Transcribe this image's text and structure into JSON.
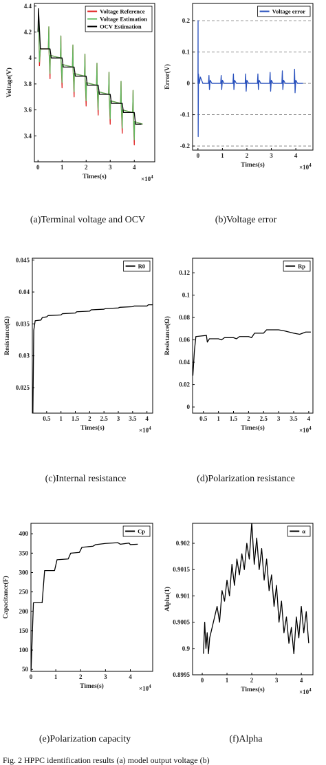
{
  "chart_data": [
    {
      "type": "line",
      "caption": "(a)Terminal voltage and OCV",
      "ylabel": "Voltage(V)",
      "xlabel": "Times(s)",
      "x_scale_base": "×10",
      "x_scale_exp": "4",
      "xlim": [
        -0.15,
        4.85
      ],
      "xticks": [
        0,
        1,
        2,
        3,
        4
      ],
      "ylim": [
        3.2,
        4.42
      ],
      "yticks": [
        3.4,
        3.6,
        3.8,
        4,
        4.2,
        4.4
      ],
      "grid": false,
      "legend": "upper right",
      "series": [
        {
          "name": "Voltage Reference",
          "color": "#e02020",
          "x": [
            0,
            0.03,
            0.06,
            0.1,
            0.43,
            0.45,
            0.46,
            0.5,
            0.51,
            0.93,
            0.95,
            0.96,
            1.0,
            1.01,
            1.43,
            1.45,
            1.46,
            1.5,
            1.51,
            1.93,
            1.95,
            1.96,
            2.0,
            2.01,
            2.43,
            2.45,
            2.46,
            2.5,
            2.51,
            2.93,
            2.95,
            2.96,
            3.0,
            3.01,
            3.43,
            3.45,
            3.46,
            3.5,
            3.51,
            3.93,
            3.95,
            3.96,
            4.0,
            4.01,
            4.35
          ],
          "values": [
            4.2,
            4.28,
            3.94,
            4.07,
            4.07,
            4.24,
            4.05,
            3.84,
            4.02,
            4.0,
            4.17,
            3.98,
            3.77,
            3.95,
            3.93,
            4.1,
            3.91,
            3.7,
            3.88,
            3.86,
            4.03,
            3.84,
            3.63,
            3.81,
            3.79,
            3.96,
            3.77,
            3.56,
            3.74,
            3.72,
            3.89,
            3.7,
            3.49,
            3.67,
            3.65,
            3.82,
            3.63,
            3.42,
            3.6,
            3.58,
            3.75,
            3.56,
            3.33,
            3.51,
            3.49
          ]
        },
        {
          "name": "Voltage Estimation",
          "color": "#5cb85c",
          "x": [
            0,
            0.03,
            0.06,
            0.1,
            0.43,
            0.45,
            0.46,
            0.5,
            0.51,
            0.93,
            0.95,
            0.96,
            1.0,
            1.01,
            1.43,
            1.45,
            1.46,
            1.5,
            1.51,
            1.93,
            1.95,
            1.96,
            2.0,
            2.01,
            2.43,
            2.45,
            2.46,
            2.5,
            2.51,
            2.93,
            2.95,
            2.96,
            3.0,
            3.01,
            3.43,
            3.45,
            3.46,
            3.5,
            3.51,
            3.93,
            3.95,
            3.96,
            4.0,
            4.01,
            4.35
          ],
          "values": [
            4.2,
            4.28,
            3.97,
            4.07,
            4.07,
            4.24,
            4.05,
            3.88,
            4.02,
            4.0,
            4.17,
            3.98,
            3.81,
            3.95,
            3.93,
            4.1,
            3.91,
            3.74,
            3.88,
            3.86,
            4.03,
            3.84,
            3.67,
            3.81,
            3.79,
            3.96,
            3.77,
            3.6,
            3.74,
            3.72,
            3.89,
            3.7,
            3.53,
            3.67,
            3.65,
            3.82,
            3.63,
            3.46,
            3.6,
            3.58,
            3.75,
            3.56,
            3.37,
            3.51,
            3.49
          ]
        },
        {
          "name": "OCV Estimation",
          "color": "#000000",
          "x": [
            0,
            0.02,
            0.1,
            0.5,
            0.55,
            1.0,
            1.05,
            1.5,
            1.55,
            2.0,
            2.05,
            2.5,
            2.55,
            3.0,
            3.05,
            3.5,
            3.55,
            4.0,
            4.05,
            4.3
          ],
          "values": [
            4.2,
            4.38,
            4.07,
            4.07,
            4.0,
            4.0,
            3.93,
            3.93,
            3.86,
            3.86,
            3.79,
            3.79,
            3.72,
            3.72,
            3.65,
            3.65,
            3.58,
            3.58,
            3.49,
            3.49
          ]
        }
      ]
    },
    {
      "type": "line",
      "caption": "(b)Voltage error",
      "ylabel": "Error(V)",
      "xlabel": "Times(s)",
      "x_scale_base": "×10",
      "x_scale_exp": "4",
      "xlim": [
        -0.22,
        4.7
      ],
      "xticks": [
        0,
        1,
        2,
        3,
        4
      ],
      "ylim": [
        -0.213,
        0.255
      ],
      "yticks": [
        -0.2,
        -0.1,
        0,
        0.1,
        0.2
      ],
      "grid": true,
      "legend": "upper right",
      "series": [
        {
          "name": "Voltage error",
          "color": "#2a52be",
          "x": [
            0,
            0.005,
            0.01,
            0.02,
            0.06,
            0.1,
            0.2,
            0.43,
            0.45,
            0.47,
            0.5,
            0.57,
            0.93,
            0.95,
            0.97,
            1.0,
            1.07,
            1.43,
            1.45,
            1.47,
            1.5,
            1.57,
            1.93,
            1.95,
            1.97,
            2.0,
            2.07,
            2.43,
            2.45,
            2.47,
            2.5,
            2.57,
            2.93,
            2.95,
            2.97,
            3.0,
            3.07,
            3.43,
            3.45,
            3.47,
            3.5,
            3.57,
            3.93,
            3.95,
            3.97,
            4.0,
            4.07,
            4.3
          ],
          "values": [
            0,
            0.2,
            -0.17,
            0.03,
            0,
            0.02,
            0,
            0,
            0.025,
            -0.02,
            0.01,
            0,
            0,
            0.025,
            -0.02,
            0.01,
            0,
            0,
            0.03,
            -0.02,
            0.01,
            0,
            0,
            0.03,
            -0.025,
            0.01,
            0,
            0,
            0.03,
            -0.02,
            0.01,
            0,
            0,
            0.035,
            -0.025,
            0.01,
            0,
            0,
            0.04,
            -0.02,
            0.01,
            0,
            0,
            0.045,
            -0.03,
            0.01,
            0,
            0
          ]
        }
      ]
    },
    {
      "type": "line",
      "caption": "(c)Internal resistance",
      "ylabel": "Resistance(Ω)",
      "xlabel": "Times(s)",
      "x_scale_base": "×10",
      "x_scale_exp": "4",
      "xlim": [
        0,
        4.2
      ],
      "xticks": [
        0.5,
        1,
        1.5,
        2,
        2.5,
        3,
        3.5,
        4
      ],
      "ylim": [
        0.021,
        0.0453
      ],
      "yticks": [
        0.025,
        0.03,
        0.035,
        0.04,
        0.045
      ],
      "grid": false,
      "legend": "upper right",
      "series": [
        {
          "name": "R0",
          "color": "#000000",
          "x": [
            0.02,
            0.05,
            0.1,
            0.3,
            0.35,
            0.5,
            0.55,
            1.0,
            1.05,
            1.5,
            1.55,
            2.0,
            2.05,
            2.5,
            2.55,
            3.0,
            3.05,
            3.5,
            3.55,
            4.0,
            4.05,
            4.2
          ],
          "values": [
            0.021,
            0.034,
            0.0355,
            0.0356,
            0.036,
            0.0361,
            0.0363,
            0.0364,
            0.0366,
            0.0367,
            0.0369,
            0.037,
            0.0372,
            0.0373,
            0.0374,
            0.0375,
            0.0376,
            0.0377,
            0.0378,
            0.0378,
            0.038,
            0.038
          ]
        }
      ]
    },
    {
      "type": "line",
      "caption": "(d)Polarization resistance",
      "ylabel": "Resistance(Ω)",
      "xlabel": "Times(s)",
      "x_scale_base": "×10",
      "x_scale_exp": "4",
      "xlim": [
        0.14,
        4.14
      ],
      "xticks": [
        0.5,
        1,
        1.5,
        2,
        2.5,
        3,
        3.5,
        4
      ],
      "ylim": [
        -0.0055,
        0.133
      ],
      "yticks": [
        0,
        0.02,
        0.04,
        0.06,
        0.08,
        0.1,
        0.12
      ],
      "grid": false,
      "legend": "upper right",
      "series": [
        {
          "name": "Rp",
          "color": "#000000",
          "x": [
            0.15,
            0.2,
            0.25,
            0.6,
            0.63,
            0.7,
            1.0,
            1.1,
            1.2,
            1.5,
            1.6,
            1.7,
            2.0,
            2.1,
            2.2,
            2.5,
            2.6,
            3.0,
            3.2,
            3.5,
            3.7,
            3.9,
            4.07
          ],
          "values": [
            0.028,
            0.05,
            0.063,
            0.064,
            0.058,
            0.061,
            0.061,
            0.06,
            0.062,
            0.062,
            0.061,
            0.063,
            0.063,
            0.062,
            0.066,
            0.066,
            0.069,
            0.069,
            0.068,
            0.066,
            0.065,
            0.067,
            0.067
          ]
        }
      ]
    },
    {
      "type": "line",
      "caption": "(e)Polarization capacity",
      "ylabel": "Capacitance(F)",
      "xlabel": "Times(s)",
      "x_scale_base": "×10",
      "x_scale_exp": "4",
      "xlim": [
        0,
        4.9
      ],
      "xticks": [
        0,
        1,
        2,
        3,
        4
      ],
      "ylim": [
        45,
        427
      ],
      "yticks": [
        50,
        100,
        150,
        200,
        250,
        300,
        350,
        400
      ],
      "grid": false,
      "legend": "upper right",
      "series": [
        {
          "name": "Cp",
          "color": "#000000",
          "x": [
            0,
            0.1,
            0.45,
            0.55,
            0.95,
            1.05,
            1.5,
            1.6,
            1.95,
            2.05,
            2.5,
            2.6,
            3.0,
            3.5,
            3.6,
            3.95,
            4.0,
            4.3
          ],
          "values": [
            40,
            222,
            222,
            305,
            305,
            333,
            335,
            350,
            352,
            365,
            368,
            372,
            375,
            377,
            373,
            376,
            372,
            373
          ]
        }
      ]
    },
    {
      "type": "line",
      "caption": "(f)Alpha",
      "ylabel": "Alpha(1)",
      "xlabel": "Times(s)",
      "x_scale_base": "×10",
      "x_scale_exp": "4",
      "xlim": [
        -0.39,
        4.47
      ],
      "xticks": [
        0,
        1,
        2,
        3,
        4
      ],
      "ylim": [
        0.8995,
        0.90238
      ],
      "yticks": [
        0.8995,
        0.9,
        0.9005,
        0.901,
        0.9015,
        0.902
      ],
      "grid": false,
      "legend": "upper right",
      "series": [
        {
          "name": "α",
          "color": "#000000",
          "x": [
            0.05,
            0.1,
            0.15,
            0.2,
            0.25,
            0.3,
            0.4,
            0.5,
            0.6,
            0.7,
            0.8,
            0.9,
            1.0,
            1.1,
            1.2,
            1.3,
            1.4,
            1.5,
            1.6,
            1.7,
            1.8,
            1.9,
            2.0,
            2.1,
            2.2,
            2.3,
            2.4,
            2.5,
            2.6,
            2.7,
            2.8,
            2.9,
            3.0,
            3.1,
            3.2,
            3.3,
            3.4,
            3.5,
            3.6,
            3.7,
            3.8,
            3.9,
            4.0,
            4.1,
            4.2,
            4.3
          ],
          "values": [
            0.8999,
            0.9005,
            0.9,
            0.9003,
            0.8999,
            0.9002,
            0.9004,
            0.9006,
            0.9008,
            0.9005,
            0.9011,
            0.9009,
            0.9013,
            0.901,
            0.9016,
            0.9012,
            0.9017,
            0.9014,
            0.9018,
            0.9015,
            0.902,
            0.9017,
            0.9024,
            0.9016,
            0.9021,
            0.9015,
            0.9019,
            0.9013,
            0.9017,
            0.9011,
            0.9014,
            0.9008,
            0.9012,
            0.9005,
            0.9009,
            0.9003,
            0.9006,
            0.9001,
            0.9004,
            0.8999,
            0.9006,
            0.9002,
            0.9008,
            0.9003,
            0.9007,
            0.9001
          ]
        }
      ]
    }
  ],
  "figure_caption": "Fig. 2    HPPC identification results (a) model output voltage (b)"
}
